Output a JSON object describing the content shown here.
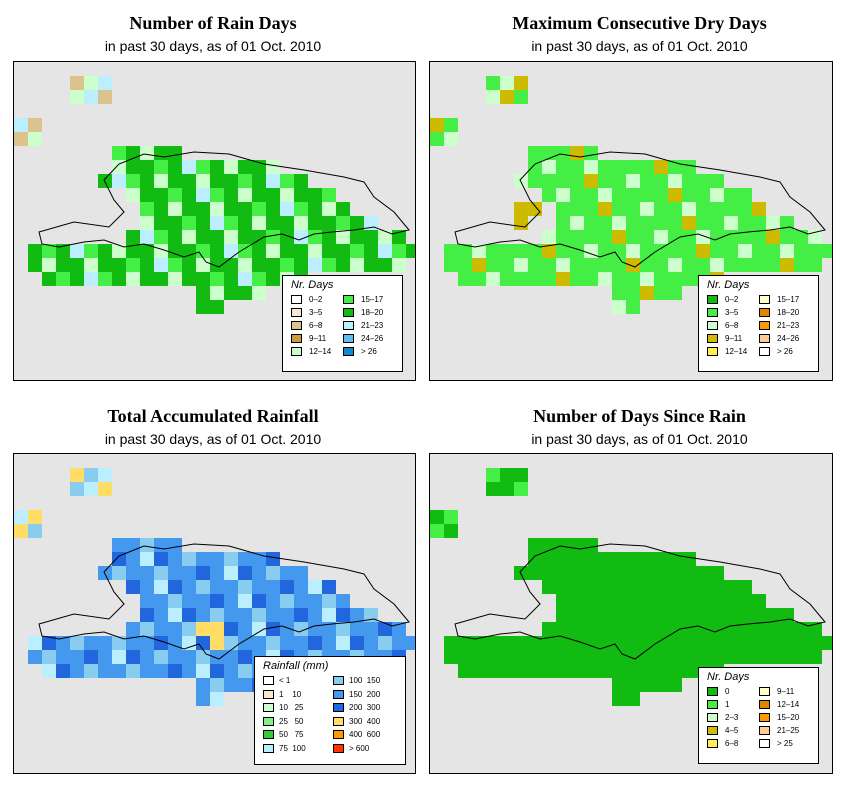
{
  "panels": [
    {
      "title": "Number of Rain Days",
      "subtitle": "in past 30 days, as of  01 Oct. 2010",
      "legend_title": "Nr. Days",
      "legend": [
        {
          "label": "0–2",
          "color": "#ffffff"
        },
        {
          "label": "3–5",
          "color": "#f5e8cf"
        },
        {
          "label": "6–8",
          "color": "#dcc38e"
        },
        {
          "label": "9–11",
          "color": "#c89b3c"
        },
        {
          "label": "12–14",
          "color": "#ccffcc"
        },
        {
          "label": "15–17",
          "color": "#44ee44"
        },
        {
          "label": "18–20",
          "color": "#11bb11"
        },
        {
          "label": "21–23",
          "color": "#bbeeff"
        },
        {
          "label": "24–26",
          "color": "#66bbee"
        },
        {
          "label": "> 26",
          "color": "#1188cc"
        }
      ]
    },
    {
      "title": "Maximum Consecutive Dry Days",
      "subtitle": "in past 30 days, as of  01 Oct. 2010",
      "legend_title": "Nr. Days",
      "legend": [
        {
          "label": "0–2",
          "color": "#11bb11"
        },
        {
          "label": "3–5",
          "color": "#44ee44"
        },
        {
          "label": "6–8",
          "color": "#ccffcc"
        },
        {
          "label": "9–11",
          "color": "#ccbb00"
        },
        {
          "label": "12–14",
          "color": "#ffee55"
        },
        {
          "label": "15–17",
          "color": "#ffffcc"
        },
        {
          "label": "18–20",
          "color": "#dd8800"
        },
        {
          "label": "21–23",
          "color": "#ff9900"
        },
        {
          "label": "24–26",
          "color": "#ffcc99"
        },
        {
          "label": "> 26",
          "color": "#ffffff"
        }
      ]
    },
    {
      "title": "Total Accumulated Rainfall",
      "subtitle": "in past 30 days, as of  01 Oct. 2010",
      "legend_title": "Rainfall (mm)",
      "legend": [
        {
          "label": "< 1",
          "color": "#ffffff"
        },
        {
          "label": "1    10",
          "color": "#f5e8cf"
        },
        {
          "label": "10   25",
          "color": "#ccffcc"
        },
        {
          "label": "25   50",
          "color": "#88ee88"
        },
        {
          "label": "50   75",
          "color": "#33cc33"
        },
        {
          "label": "75  100",
          "color": "#bbeeff"
        },
        {
          "label": "100  150",
          "color": "#88ccf0"
        },
        {
          "label": "150  200",
          "color": "#4499ee"
        },
        {
          "label": "200  300",
          "color": "#2266dd"
        },
        {
          "label": "300  400",
          "color": "#ffdd66"
        },
        {
          "label": "400  600",
          "color": "#ff9900"
        },
        {
          "label": "> 600",
          "color": "#ff3300"
        }
      ]
    },
    {
      "title": "Number of Days Since Rain",
      "subtitle": "in past 30 days, as of  01 Oct. 2010",
      "legend_title": "Nr. Days",
      "legend": [
        {
          "label": "0",
          "color": "#11bb11"
        },
        {
          "label": "1",
          "color": "#44ee44"
        },
        {
          "label": "2–3",
          "color": "#ccffcc"
        },
        {
          "label": "4–5",
          "color": "#ccbb00"
        },
        {
          "label": "6–8",
          "color": "#ffee55"
        },
        {
          "label": "9–11",
          "color": "#ffffcc"
        },
        {
          "label": "12–14",
          "color": "#dd8800"
        },
        {
          "label": "15–20",
          "color": "#ff9900"
        },
        {
          "label": "21–25",
          "color": "#ffcc99"
        },
        {
          "label": "> 25",
          "color": "#ffffff"
        }
      ]
    }
  ]
}
